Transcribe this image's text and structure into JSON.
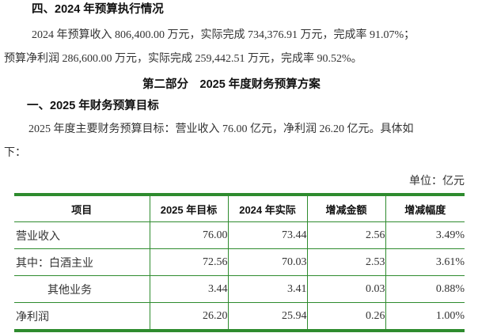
{
  "section4": {
    "heading": "四、2024 年预算执行情况",
    "line1": "2024 年预算收入 806,400.00 万元，实际完成 734,376.91 万元，完成率 91.07%；",
    "line2": "预算净利润 286,600.00 万元，实际完成 259,442.51 万元，完成率 90.52%。"
  },
  "part2": {
    "heading": "第二部分　2025 年度财务预算方案",
    "sub_heading": "一、2025 年财务预算目标",
    "para_line1": "2025 年度主要财务预算目标：营业收入 76.00 亿元，净利润 26.20 亿元。具体如",
    "para_line2": "下：",
    "unit": "单位：亿元"
  },
  "table": {
    "headers": [
      "项目",
      "2025 年目标",
      "2024 年实际",
      "增减金额",
      "增减幅度"
    ],
    "rows": [
      [
        "营业收入",
        "76.00",
        "73.44",
        "2.56",
        "3.49%"
      ],
      [
        "其中：白酒主业",
        "72.56",
        "70.03",
        "2.53",
        "3.61%"
      ],
      [
        "其他业务",
        "3.44",
        "3.41",
        "0.03",
        "0.88%"
      ],
      [
        "净利润",
        "26.20",
        "25.94",
        "0.26",
        "1.00%"
      ]
    ]
  },
  "colors": {
    "table_border": "#2e8b2e"
  }
}
